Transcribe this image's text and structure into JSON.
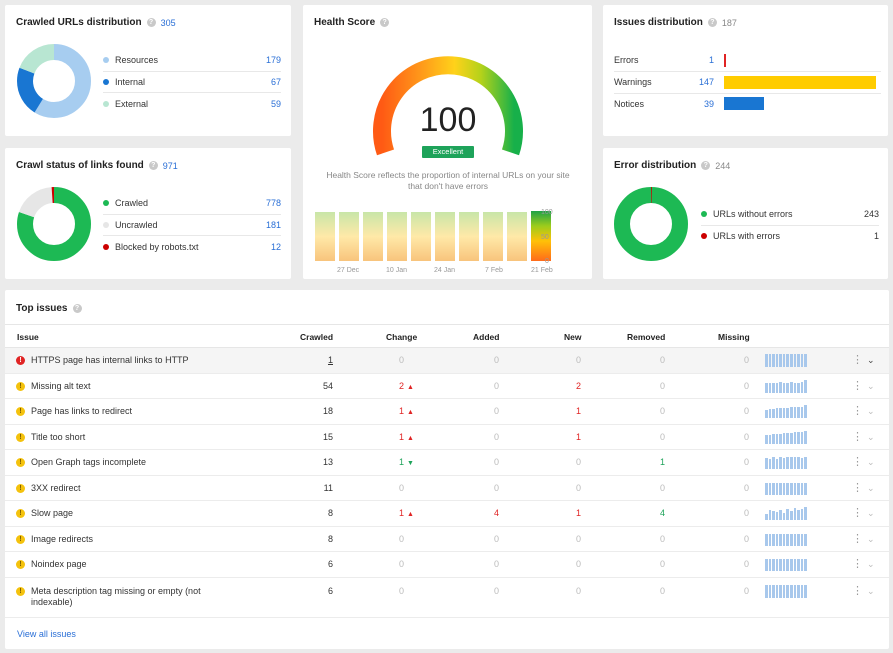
{
  "crawled_urls": {
    "title": "Crawled URLs distribution",
    "total": "305",
    "items": [
      {
        "label": "Resources",
        "value": "179",
        "color": "#a7cdf0"
      },
      {
        "label": "Internal",
        "value": "67",
        "color": "#1976d2"
      },
      {
        "label": "External",
        "value": "59",
        "color": "#b8e6d2"
      }
    ]
  },
  "health": {
    "title": "Health Score",
    "score": "100",
    "badge": "Excellent",
    "description": "Health Score reflects the proportion of internal URLs on your site that don't have errors",
    "scale": [
      "100",
      "50",
      "0"
    ],
    "dates": [
      "27 Dec",
      "10 Jan",
      "24 Jan",
      "7 Feb",
      "21 Feb"
    ]
  },
  "issues_dist": {
    "title": "Issues distribution",
    "total": "187",
    "items": [
      {
        "label": "Errors",
        "value": "1",
        "color": "#e02424",
        "level": 0.007
      },
      {
        "label": "Warnings",
        "value": "147",
        "color": "#ffcc00",
        "level": 1
      },
      {
        "label": "Notices",
        "value": "39",
        "color": "#1976d2",
        "level": 0.265
      }
    ]
  },
  "crawl_status": {
    "title": "Crawl status of links found",
    "total": "971",
    "items": [
      {
        "label": "Crawled",
        "value": "778",
        "color": "#1db954"
      },
      {
        "label": "Uncrawled",
        "value": "181",
        "color": "#e6e6e6"
      },
      {
        "label": "Blocked by robots.txt",
        "value": "12",
        "color": "#cc0000"
      }
    ]
  },
  "error_dist": {
    "title": "Error distribution",
    "total": "244",
    "items": [
      {
        "label": "URLs without errors",
        "value": "243",
        "color": "#1db954"
      },
      {
        "label": "URLs with errors",
        "value": "1",
        "color": "#cc0000"
      }
    ]
  },
  "top_issues": {
    "title": "Top issues",
    "columns": [
      "Issue",
      "Crawled",
      "Change",
      "Added",
      "New",
      "Removed",
      "Missing"
    ],
    "rows": [
      {
        "severity": "error",
        "issue": "HTTPS page has internal links to HTTP",
        "crawled": "1",
        "change": "0",
        "trend": "",
        "added": "0",
        "new": "0",
        "removed": "0",
        "missing": "0"
      },
      {
        "severity": "warning",
        "issue": "Missing alt text",
        "crawled": "54",
        "change": "2",
        "trend": "up",
        "added": "0",
        "new": "2",
        "removed": "0",
        "missing": "0"
      },
      {
        "severity": "warning",
        "issue": "Page has links to redirect",
        "crawled": "18",
        "change": "1",
        "trend": "up",
        "added": "0",
        "new": "1",
        "removed": "0",
        "missing": "0"
      },
      {
        "severity": "warning",
        "issue": "Title too short",
        "crawled": "15",
        "change": "1",
        "trend": "up",
        "added": "0",
        "new": "1",
        "removed": "0",
        "missing": "0"
      },
      {
        "severity": "warning",
        "issue": "Open Graph tags incomplete",
        "crawled": "13",
        "change": "1",
        "trend": "down",
        "added": "0",
        "new": "0",
        "removed": "1",
        "missing": "0"
      },
      {
        "severity": "warning",
        "issue": "3XX redirect",
        "crawled": "11",
        "change": "0",
        "trend": "",
        "added": "0",
        "new": "0",
        "removed": "0",
        "missing": "0"
      },
      {
        "severity": "warning",
        "issue": "Slow page",
        "crawled": "8",
        "change": "1",
        "trend": "up",
        "added": "4",
        "new": "1",
        "removed": "4",
        "missing": "0"
      },
      {
        "severity": "warning",
        "issue": "Image redirects",
        "crawled": "8",
        "change": "0",
        "trend": "",
        "added": "0",
        "new": "0",
        "removed": "0",
        "missing": "0"
      },
      {
        "severity": "warning",
        "issue": "Noindex page",
        "crawled": "6",
        "change": "0",
        "trend": "",
        "added": "0",
        "new": "0",
        "removed": "0",
        "missing": "0"
      },
      {
        "severity": "warning",
        "issue": "Meta description tag missing or empty (not indexable)",
        "crawled": "6",
        "change": "0",
        "trend": "",
        "added": "0",
        "new": "0",
        "removed": "0",
        "missing": "0"
      }
    ],
    "view_all": "View all issues"
  }
}
